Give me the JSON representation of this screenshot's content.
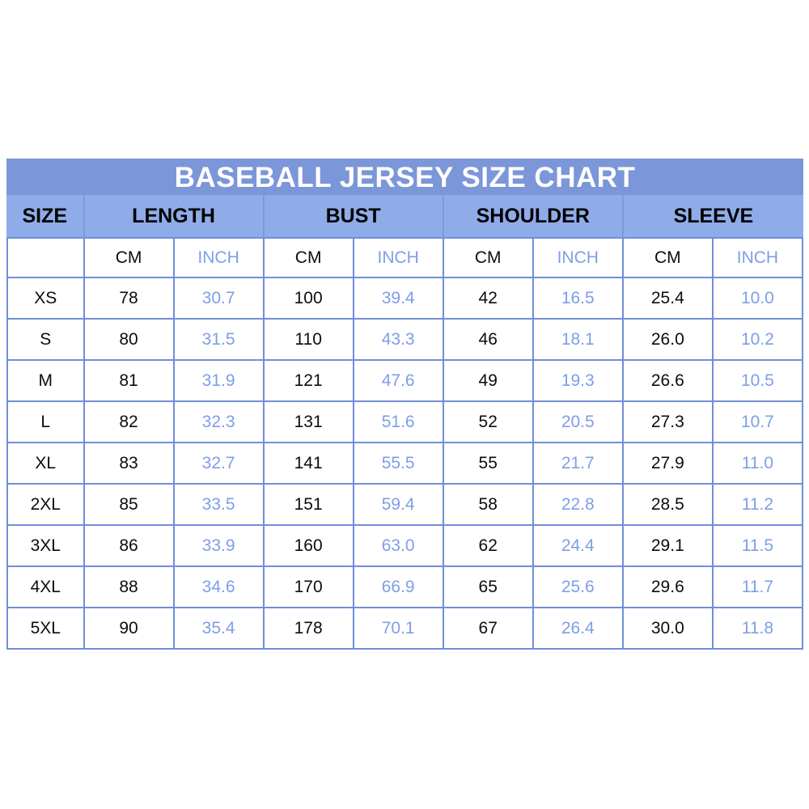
{
  "title_bar": {
    "text": "BASEBALL JERSEY SIZE CHART"
  },
  "chart_data": {
    "type": "table",
    "title": "BASEBALL JERSEY SIZE CHART",
    "column_groups": [
      {
        "label": "SIZE",
        "span": 1
      },
      {
        "label": "LENGTH",
        "span": 2
      },
      {
        "label": "BUST",
        "span": 2
      },
      {
        "label": "SHOULDER",
        "span": 2
      },
      {
        "label": "SLEEVE",
        "span": 2
      }
    ],
    "unit_labels": {
      "cm": "CM",
      "inch": "INCH"
    },
    "columns": [
      "SIZE",
      "LENGTH CM",
      "LENGTH INCH",
      "BUST CM",
      "BUST INCH",
      "SHOULDER CM",
      "SHOULDER INCH",
      "SLEEVE CM",
      "SLEEVE INCH"
    ],
    "rows": [
      [
        "XS",
        "78",
        "30.7",
        "100",
        "39.4",
        "42",
        "16.5",
        "25.4",
        "10.0"
      ],
      [
        "S",
        "80",
        "31.5",
        "110",
        "43.3",
        "46",
        "18.1",
        "26.0",
        "10.2"
      ],
      [
        "M",
        "81",
        "31.9",
        "121",
        "47.6",
        "49",
        "19.3",
        "26.6",
        "10.5"
      ],
      [
        "L",
        "82",
        "32.3",
        "131",
        "51.6",
        "52",
        "20.5",
        "27.3",
        "10.7"
      ],
      [
        "XL",
        "83",
        "32.7",
        "141",
        "55.5",
        "55",
        "21.7",
        "27.9",
        "11.0"
      ],
      [
        "2XL",
        "85",
        "33.5",
        "151",
        "59.4",
        "58",
        "22.8",
        "28.5",
        "11.2"
      ],
      [
        "3XL",
        "86",
        "33.9",
        "160",
        "63.0",
        "62",
        "24.4",
        "29.1",
        "11.5"
      ],
      [
        "4XL",
        "88",
        "34.6",
        "170",
        "66.9",
        "65",
        "25.6",
        "29.6",
        "11.7"
      ],
      [
        "5XL",
        "90",
        "35.4",
        "178",
        "70.1",
        "67",
        "26.4",
        "30.0",
        "11.8"
      ]
    ],
    "layout": {
      "grid": "on",
      "legend": "none"
    }
  },
  "colors": {
    "title_bar_bg": "#7b96d9",
    "header_bg": "#8fabe8",
    "grid_border": "#6e8fd9",
    "header_divider": "#7e9adc",
    "inch_text": "#7e9ee7",
    "cm_text": "#0d0d0d",
    "title_text": "#ffffff"
  }
}
